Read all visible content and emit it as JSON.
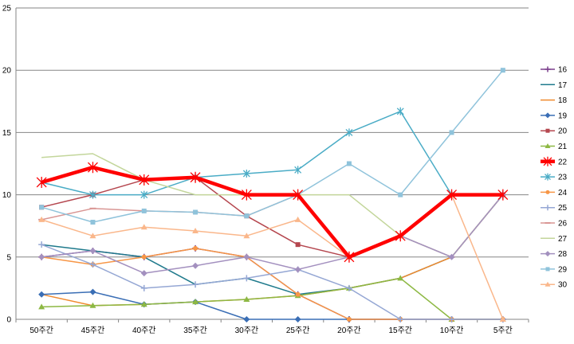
{
  "chart_data": {
    "type": "line",
    "title": "",
    "xlabel": "",
    "ylabel": "",
    "x": [
      "50주간",
      "45주간",
      "40주간",
      "35주간",
      "30주간",
      "25주간",
      "20주간",
      "15주간",
      "10주간",
      "5주간"
    ],
    "yticks": [
      "0",
      "5",
      "10",
      "15",
      "20",
      "25"
    ],
    "ylim": [
      0,
      25
    ],
    "grid": "horizontal",
    "legend_position": "right",
    "series": [
      {
        "name": "16",
        "color": "#7B3F8C",
        "marker": "plus",
        "width": 1.5,
        "values": [
          5,
          5.5,
          5,
          5.7,
          5,
          2,
          0,
          0,
          0,
          0
        ]
      },
      {
        "name": "17",
        "color": "#1F7A8C",
        "marker": "none",
        "width": 1.5,
        "values": [
          6,
          5.5,
          5,
          2.8,
          3.3,
          2,
          2.5,
          3.3,
          5,
          10
        ]
      },
      {
        "name": "18",
        "color": "#F08A2E",
        "marker": "none",
        "width": 1.5,
        "values": [
          2,
          1.1,
          1.2,
          1.4,
          1.6,
          1.9,
          2.5,
          3.3,
          5,
          10
        ]
      },
      {
        "name": "19",
        "color": "#3A6EB5",
        "marker": "diamond",
        "width": 1.5,
        "values": [
          2,
          2.2,
          1.2,
          1.4,
          0,
          0,
          0,
          0,
          0,
          0
        ]
      },
      {
        "name": "20",
        "color": "#B5474F",
        "marker": "square",
        "width": 1.5,
        "values": [
          9,
          10,
          11.2,
          11.4,
          8.3,
          6,
          5,
          6.7,
          10,
          10
        ]
      },
      {
        "name": "21",
        "color": "#8DB843",
        "marker": "triangle",
        "width": 1.5,
        "values": [
          1,
          1.1,
          1.2,
          1.4,
          1.6,
          1.9,
          2.5,
          3.3,
          0,
          0
        ]
      },
      {
        "name": "22",
        "color": "#FF0000",
        "marker": "star",
        "width": 4.5,
        "values": [
          11,
          12.2,
          11.2,
          11.4,
          10,
          10,
          5,
          6.7,
          10,
          10
        ]
      },
      {
        "name": "23",
        "color": "#4AACC6",
        "marker": "star",
        "width": 1.5,
        "values": [
          11,
          10,
          10,
          11.4,
          11.7,
          12,
          15,
          16.7,
          10,
          10
        ]
      },
      {
        "name": "24",
        "color": "#F79646",
        "marker": "circle",
        "width": 1.5,
        "values": [
          5,
          4.4,
          5,
          5.7,
          5,
          2,
          0,
          0,
          0,
          0
        ]
      },
      {
        "name": "25",
        "color": "#95A7D4",
        "marker": "plus",
        "width": 1.5,
        "values": [
          6,
          4.4,
          2.5,
          2.8,
          3.3,
          4,
          2.5,
          0,
          0,
          0
        ]
      },
      {
        "name": "26",
        "color": "#D99694",
        "marker": "dash",
        "width": 1.5,
        "values": [
          8,
          8.9,
          8.7,
          8.6,
          8.3,
          10,
          5,
          6.7,
          5,
          10
        ]
      },
      {
        "name": "27",
        "color": "#C3D69B",
        "marker": "none",
        "width": 1.5,
        "values": [
          13,
          13.3,
          11.2,
          10,
          10,
          10,
          10,
          6.7,
          5,
          10
        ]
      },
      {
        "name": "28",
        "color": "#A390BF",
        "marker": "diamond",
        "width": 1.5,
        "values": [
          5,
          5.5,
          3.7,
          4.3,
          5,
          4,
          5,
          6.7,
          5,
          10
        ]
      },
      {
        "name": "29",
        "color": "#8FC3DB",
        "marker": "square",
        "width": 1.5,
        "values": [
          9,
          7.8,
          8.7,
          8.6,
          8.3,
          10,
          12.5,
          10,
          15,
          20
        ]
      },
      {
        "name": "30",
        "color": "#FAB78B",
        "marker": "triangle",
        "width": 1.5,
        "values": [
          8,
          6.7,
          7.4,
          7.1,
          6.7,
          8,
          5,
          6.7,
          10,
          0
        ]
      }
    ]
  }
}
